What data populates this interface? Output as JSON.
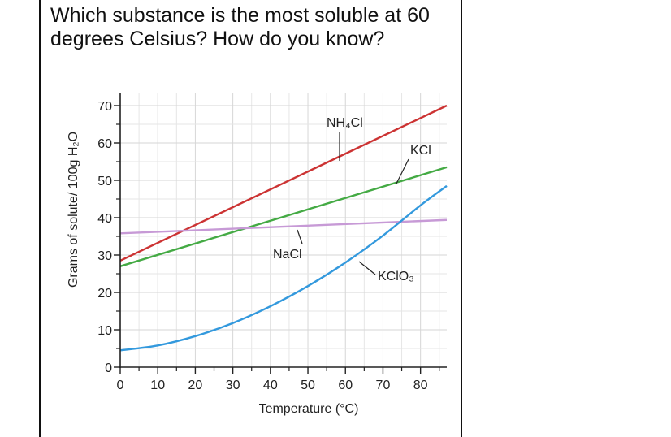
{
  "question": {
    "text": "Which substance is the most soluble at 60 degrees Celsius? How do you know?"
  },
  "chart_data": {
    "type": "line",
    "xlabel": "Temperature (°C)",
    "ylabel": "Grams of solute/ 100g H₂O",
    "xlim": [
      0,
      87
    ],
    "ylim": [
      0,
      72
    ],
    "xticks": [
      "0",
      "10",
      "20",
      "30",
      "40",
      "50",
      "60",
      "70",
      "80"
    ],
    "yticks": [
      "0",
      "10",
      "20",
      "30",
      "40",
      "50",
      "60",
      "70"
    ],
    "grid": true,
    "series": [
      {
        "name": "NH4Cl",
        "label": "NH₄Cl",
        "color": "#cc3333",
        "x": [
          0,
          87
        ],
        "y": [
          28.5,
          70
        ]
      },
      {
        "name": "KCl",
        "label": "KCl",
        "color": "#44aa44",
        "x": [
          0,
          87
        ],
        "y": [
          27,
          53.5
        ]
      },
      {
        "name": "NaCl",
        "label": "NaCl",
        "color": "#c79ad6",
        "x": [
          0,
          87
        ],
        "y": [
          35.8,
          39.4
        ]
      },
      {
        "name": "KClO3",
        "label": "KClO₃",
        "color": "#3399dd",
        "x": [
          0,
          10,
          20,
          30,
          40,
          50,
          60,
          70,
          80,
          87
        ],
        "y": [
          4.5,
          5.8,
          8.3,
          11.8,
          16.3,
          21.7,
          28,
          35.2,
          43.3,
          48.5
        ]
      }
    ]
  }
}
